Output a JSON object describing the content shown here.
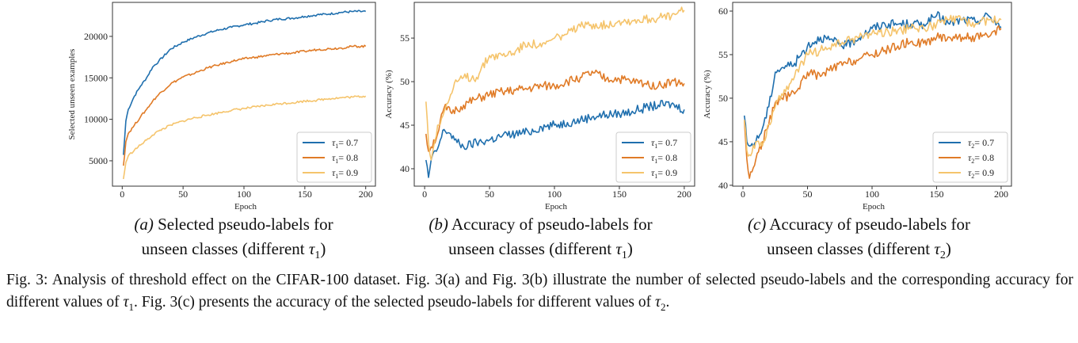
{
  "colors": {
    "blue": "#1f6fae",
    "orange": "#e07b27",
    "yellow": "#f5c46c"
  },
  "chart_data": [
    {
      "type": "line",
      "id": "a",
      "xlabel": "Epoch",
      "ylabel": "Selected unseen examples",
      "xlim": [
        -8,
        208
      ],
      "ylim": [
        1940,
        24100
      ],
      "xticks": [
        0,
        50,
        100,
        150,
        200
      ],
      "yticks": [
        5000,
        10000,
        15000,
        20000
      ],
      "legend_position": "bottom-right",
      "x": [
        1,
        3,
        5,
        10,
        15,
        20,
        25,
        30,
        40,
        50,
        60,
        70,
        80,
        90,
        100,
        110,
        120,
        130,
        140,
        150,
        160,
        170,
        180,
        190,
        200
      ],
      "series": [
        {
          "name": "τ1 = 0.7",
          "sym": "τ",
          "sub": "1",
          "val": "= 0.7",
          "color": "blue",
          "values": [
            5700,
            9800,
            11200,
            12800,
            14000,
            15000,
            16300,
            17000,
            18500,
            19300,
            19900,
            20400,
            20800,
            21100,
            21400,
            21600,
            21900,
            22100,
            22200,
            22400,
            22600,
            22700,
            22900,
            23000,
            23000
          ]
        },
        {
          "name": "τ1 = 0.8",
          "sym": "τ",
          "sub": "1",
          "val": "= 0.8",
          "color": "orange",
          "values": [
            4400,
            7300,
            8300,
            9300,
            10300,
            11200,
            12200,
            13000,
            14300,
            15100,
            15600,
            16200,
            16600,
            17000,
            17300,
            17500,
            17700,
            17900,
            18000,
            18200,
            18400,
            18500,
            18600,
            18800,
            18800
          ]
        },
        {
          "name": "τ1 = 0.9",
          "sym": "τ",
          "sub": "1",
          "val": "= 0.9",
          "color": "yellow",
          "values": [
            2800,
            4800,
            5600,
            6300,
            6900,
            7500,
            8100,
            8600,
            9300,
            9800,
            10200,
            10500,
            10800,
            11100,
            11300,
            11500,
            11700,
            11900,
            12000,
            12200,
            12300,
            12500,
            12600,
            12700,
            12800
          ]
        }
      ]
    },
    {
      "type": "line",
      "id": "b",
      "xlabel": "Epoch",
      "ylabel": "Accuracy (%)",
      "xlim": [
        -8,
        208
      ],
      "ylim": [
        38,
        59.1
      ],
      "xticks": [
        0,
        50,
        100,
        150,
        200
      ],
      "yticks": [
        40,
        45,
        50,
        55
      ],
      "legend_position": "bottom-right",
      "x": [
        1,
        3,
        5,
        10,
        15,
        20,
        25,
        30,
        40,
        50,
        60,
        70,
        80,
        90,
        100,
        110,
        120,
        130,
        140,
        150,
        160,
        170,
        180,
        190,
        200
      ],
      "series": [
        {
          "name": "τ1 = 0.7",
          "sym": "τ",
          "sub": "1",
          "val": "= 0.7",
          "color": "blue",
          "values": [
            41,
            39,
            41,
            42.3,
            44.5,
            44,
            43,
            42.5,
            43,
            43.3,
            43.8,
            44,
            44.2,
            44.8,
            45,
            45.3,
            45.6,
            46,
            46.2,
            46.3,
            46.6,
            47,
            47.3,
            47.4,
            46.8
          ]
        },
        {
          "name": "τ1 = 0.8",
          "sym": "τ",
          "sub": "1",
          "val": "= 0.8",
          "color": "orange",
          "values": [
            44,
            42,
            42.5,
            44,
            47,
            46.5,
            46.8,
            47.3,
            48,
            48.5,
            48.8,
            49,
            49.2,
            49.5,
            49.5,
            50,
            50.5,
            51,
            50.3,
            50.3,
            50,
            49.8,
            49.5,
            50,
            49.8
          ]
        },
        {
          "name": "τ1 = 0.9",
          "sym": "τ",
          "sub": "1",
          "val": "= 0.9",
          "color": "yellow",
          "values": [
            47.7,
            43,
            41,
            45,
            46.5,
            48.5,
            50,
            50.5,
            50.5,
            53,
            53,
            53.5,
            54.5,
            54,
            55,
            55.5,
            56.3,
            56.6,
            56.5,
            57,
            57,
            57.2,
            57.3,
            57.5,
            58.2
          ]
        }
      ]
    },
    {
      "type": "line",
      "id": "c",
      "xlabel": "Epoch",
      "ylabel": "Accuracy (%)",
      "xlim": [
        -8,
        208
      ],
      "ylim": [
        39.9,
        61
      ],
      "xticks": [
        0,
        50,
        100,
        150,
        200
      ],
      "yticks": [
        40,
        45,
        50,
        55,
        60
      ],
      "legend_position": "bottom-right",
      "x": [
        1,
        3,
        5,
        10,
        15,
        20,
        25,
        30,
        40,
        50,
        60,
        70,
        80,
        90,
        100,
        110,
        120,
        130,
        140,
        150,
        160,
        170,
        180,
        190,
        200
      ],
      "series": [
        {
          "name": "τ2 = 0.7",
          "sym": "τ",
          "sub": "2",
          "val": "= 0.7",
          "color": "blue",
          "values": [
            48,
            45,
            44.5,
            45,
            46.5,
            49,
            53,
            53.5,
            54,
            56,
            57,
            56.5,
            56,
            57,
            58,
            58.5,
            58.5,
            58.5,
            58.5,
            59.5,
            58.5,
            59,
            58.8,
            59.5,
            58.2
          ]
        },
        {
          "name": "τ2 = 0.8",
          "sym": "τ",
          "sub": "2",
          "val": "= 0.8",
          "color": "orange",
          "values": [
            47.5,
            43,
            40.8,
            43,
            45,
            47,
            49.5,
            50,
            50.5,
            53,
            52.5,
            53.5,
            54,
            54.5,
            55,
            55.5,
            56,
            56.5,
            56.3,
            57,
            57,
            57,
            57,
            57,
            58
          ]
        },
        {
          "name": "τ2 = 0.9",
          "sym": "τ",
          "sub": "2",
          "val": "= 0.9",
          "color": "yellow",
          "values": [
            47.5,
            44,
            43.5,
            45,
            44.5,
            47,
            49,
            50.5,
            52.5,
            55,
            55.5,
            56,
            56.5,
            57,
            57.5,
            57.5,
            57.8,
            58,
            58,
            58.5,
            59,
            59,
            58.5,
            59,
            59
          ]
        }
      ]
    }
  ],
  "subcaptions": [
    {
      "label": "(a)",
      "line1": " Selected pseudo-labels for",
      "line2": "unseen classes (different ",
      "sym": "τ",
      "sub": "1",
      "end": ")"
    },
    {
      "label": "(b)",
      "line1": " Accuracy of pseudo-labels for",
      "line2": "unseen classes (different ",
      "sym": "τ",
      "sub": "1",
      "end": ")"
    },
    {
      "label": "(c)",
      "line1": " Accuracy of pseudo-labels for",
      "line2": "unseen classes (different ",
      "sym": "τ",
      "sub": "2",
      "end": ")"
    }
  ],
  "caption": {
    "part1": "Fig. 3: Analysis of threshold effect on the CIFAR-100 dataset. Fig. 3(a) and Fig. 3(b) illustrate the number of selected pseudo-labels and the corresponding accuracy for different values of ",
    "sym1": "τ",
    "sub1": "1",
    "part2": ". Fig. 3(c) presents the accuracy of the selected pseudo-labels for different values of ",
    "sym2": "τ",
    "sub2": "2",
    "part3": "."
  }
}
